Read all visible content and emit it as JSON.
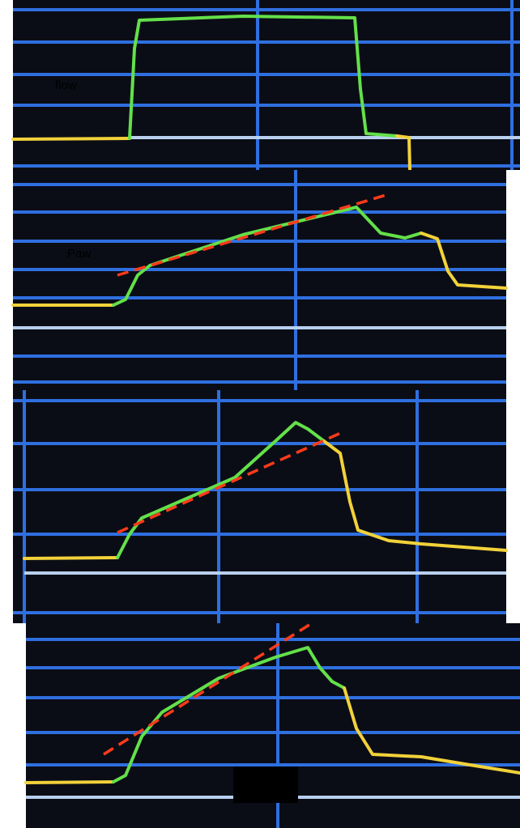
{
  "panels": [
    {
      "label": "flow"
    },
    {
      "label": "Paw"
    }
  ]
}
